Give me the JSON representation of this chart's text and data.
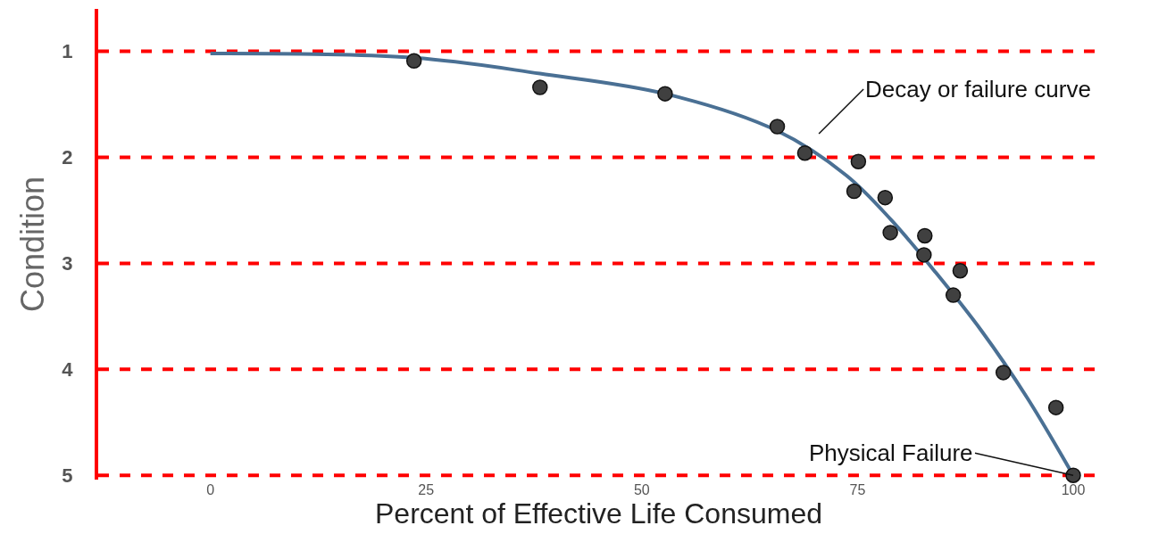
{
  "chart_data": {
    "type": "scatter",
    "xlabel": "Percent of Effective Life Consumed",
    "ylabel": "Condition",
    "xlim": [
      -13,
      103
    ],
    "xticks": [
      0,
      25,
      50,
      75,
      100
    ],
    "ylim": [
      5.04,
      0.6
    ],
    "yticks": [
      1,
      2,
      3,
      4,
      5
    ],
    "series": [
      {
        "type": "line",
        "color": "#4a7094",
        "marker": "none",
        "x": [
          0,
          23.6,
          38.2,
          52.7,
          65.7,
          73.7,
          78.9,
          84.1,
          89.4,
          94.6,
          100
        ],
        "values": [
          1.02,
          1.06,
          1.21,
          1.4,
          1.75,
          2.17,
          2.59,
          3.09,
          3.64,
          4.26,
          5
        ]
      },
      {
        "color": "#404040",
        "marker": "circle",
        "x": [
          23.6,
          38.2,
          52.7,
          65.7,
          68.9,
          75.1,
          74.6,
          78.2,
          78.8,
          82.8,
          82.7,
          86.9,
          86.1,
          91.9,
          98.0,
          100
        ],
        "values": [
          1.09,
          1.34,
          1.4,
          1.71,
          1.96,
          2.04,
          2.32,
          2.38,
          2.71,
          2.74,
          2.92,
          3.07,
          3.3,
          4.03,
          4.36,
          5
        ]
      }
    ],
    "ref_lines": [
      {
        "axis": "y",
        "value": 1,
        "color": "#ff0000",
        "line_style": "dashed"
      },
      {
        "axis": "y",
        "value": 2,
        "color": "#ff0000",
        "line_style": "dashed"
      },
      {
        "axis": "y",
        "value": 3,
        "color": "#ff0000",
        "line_style": "dashed"
      },
      {
        "axis": "y",
        "value": 4,
        "color": "#ff0000",
        "line_style": "dashed"
      },
      {
        "axis": "y",
        "value": 5,
        "color": "#ff0000",
        "line_style": "dashed"
      }
    ],
    "annotations": [
      "Decay or failure curve",
      {
        "text": "Physical Failure",
        "x": 100,
        "y": 5
      }
    ],
    "grid": false
  }
}
